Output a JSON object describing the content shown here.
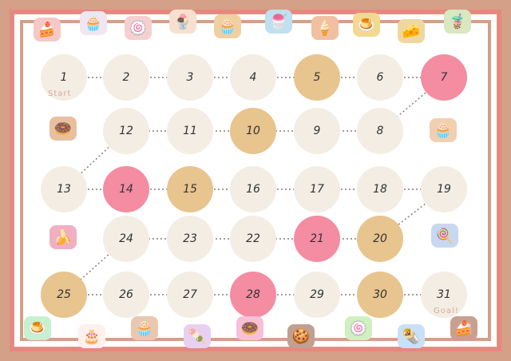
{
  "colors": {
    "plain": "#f3ede4",
    "tan": "#e8c48e",
    "pink": "#f48ca2",
    "border": "#d4a088",
    "accent": "#e8877f"
  },
  "start_label": "Start",
  "goal_label": "Goal!",
  "days": [
    {
      "n": "1",
      "c": "plain"
    },
    {
      "n": "2",
      "c": "plain"
    },
    {
      "n": "3",
      "c": "plain"
    },
    {
      "n": "4",
      "c": "plain"
    },
    {
      "n": "5",
      "c": "tan"
    },
    {
      "n": "6",
      "c": "plain"
    },
    {
      "n": "7",
      "c": "pink"
    },
    {
      "n": "8",
      "c": "plain"
    },
    {
      "n": "9",
      "c": "plain"
    },
    {
      "n": "10",
      "c": "tan"
    },
    {
      "n": "11",
      "c": "plain"
    },
    {
      "n": "12",
      "c": "plain"
    },
    {
      "n": "13",
      "c": "plain"
    },
    {
      "n": "14",
      "c": "pink"
    },
    {
      "n": "15",
      "c": "tan"
    },
    {
      "n": "16",
      "c": "plain"
    },
    {
      "n": "17",
      "c": "plain"
    },
    {
      "n": "18",
      "c": "plain"
    },
    {
      "n": "19",
      "c": "plain"
    },
    {
      "n": "20",
      "c": "tan"
    },
    {
      "n": "21",
      "c": "pink"
    },
    {
      "n": "22",
      "c": "plain"
    },
    {
      "n": "23",
      "c": "plain"
    },
    {
      "n": "24",
      "c": "plain"
    },
    {
      "n": "25",
      "c": "tan"
    },
    {
      "n": "26",
      "c": "plain"
    },
    {
      "n": "27",
      "c": "plain"
    },
    {
      "n": "28",
      "c": "pink"
    },
    {
      "n": "29",
      "c": "plain"
    },
    {
      "n": "30",
      "c": "tan"
    },
    {
      "n": "31",
      "c": "plain"
    }
  ],
  "icons": [
    "strawberry-shortcake-icon",
    "cupcake-icon",
    "roll-cake-icon",
    "parfait-icon",
    "muffin-icon",
    "shaved-ice-icon",
    "ice-cream-cone-icon",
    "pudding-icon",
    "cheesecake-icon",
    "bubble-tea-icon",
    "donut-icon",
    "cat-cupcake-icon",
    "banana-icon",
    "lollipop-icon",
    "jelly-icon",
    "birthday-cake-icon",
    "chocolate-muffin-icon",
    "macaron-icon",
    "pink-donut-icon",
    "chocolate-cookie-icon",
    "matcha-roll-icon",
    "crepe-icon",
    "chocolate-cake-slice-icon"
  ]
}
